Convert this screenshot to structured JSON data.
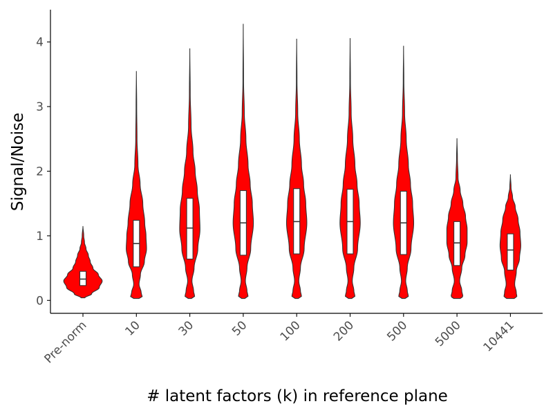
{
  "chart_data": {
    "type": "violin",
    "xlabel": "# latent factors (k) in reference plane",
    "ylabel": "Signal/Noise",
    "ylim": [
      -0.2,
      4.5
    ],
    "yticks": [
      0,
      1,
      2,
      3,
      4
    ],
    "fill_color": "#ff0000",
    "grid": false,
    "categories": [
      "Pre-norm",
      "10",
      "30",
      "50",
      "100",
      "200",
      "500",
      "5000",
      "10441"
    ],
    "series": [
      {
        "min": 0.04,
        "q1": 0.23,
        "median": 0.33,
        "q3": 0.45,
        "max": 1.15,
        "max_half_width": 0.36,
        "profile": [
          [
            0.04,
            0.1
          ],
          [
            0.1,
            0.45
          ],
          [
            0.2,
            0.85
          ],
          [
            0.3,
            1.0
          ],
          [
            0.4,
            0.8
          ],
          [
            0.5,
            0.52
          ],
          [
            0.6,
            0.38
          ],
          [
            0.7,
            0.28
          ],
          [
            0.8,
            0.16
          ],
          [
            0.9,
            0.08
          ],
          [
            1.0,
            0.04
          ],
          [
            1.15,
            0.0
          ]
        ]
      },
      {
        "min": 0.03,
        "q1": 0.52,
        "median": 0.88,
        "q3": 1.24,
        "max": 3.55,
        "max_half_width": 0.2,
        "profile": [
          [
            0.03,
            0.25
          ],
          [
            0.05,
            0.55
          ],
          [
            0.12,
            0.45
          ],
          [
            0.25,
            0.25
          ],
          [
            0.4,
            0.38
          ],
          [
            0.6,
            0.75
          ],
          [
            0.8,
            0.95
          ],
          [
            1.0,
            0.9
          ],
          [
            1.2,
            0.78
          ],
          [
            1.5,
            0.6
          ],
          [
            1.8,
            0.35
          ],
          [
            2.1,
            0.15
          ],
          [
            2.5,
            0.06
          ],
          [
            3.0,
            0.03
          ],
          [
            3.55,
            0.0
          ]
        ]
      },
      {
        "min": 0.03,
        "q1": 0.64,
        "median": 1.12,
        "q3": 1.58,
        "max": 3.9,
        "max_half_width": 0.2,
        "profile": [
          [
            0.03,
            0.15
          ],
          [
            0.06,
            0.45
          ],
          [
            0.15,
            0.35
          ],
          [
            0.3,
            0.2
          ],
          [
            0.5,
            0.4
          ],
          [
            0.8,
            0.75
          ],
          [
            1.1,
            0.95
          ],
          [
            1.4,
            0.9
          ],
          [
            1.7,
            0.7
          ],
          [
            2.0,
            0.5
          ],
          [
            2.3,
            0.3
          ],
          [
            2.7,
            0.12
          ],
          [
            3.2,
            0.04
          ],
          [
            3.9,
            0.0
          ]
        ]
      },
      {
        "min": 0.03,
        "q1": 0.7,
        "median": 1.2,
        "q3": 1.7,
        "max": 4.28,
        "max_half_width": 0.2,
        "profile": [
          [
            0.03,
            0.15
          ],
          [
            0.06,
            0.45
          ],
          [
            0.15,
            0.35
          ],
          [
            0.3,
            0.2
          ],
          [
            0.5,
            0.35
          ],
          [
            0.8,
            0.7
          ],
          [
            1.2,
            0.95
          ],
          [
            1.5,
            0.85
          ],
          [
            1.8,
            0.65
          ],
          [
            2.1,
            0.45
          ],
          [
            2.5,
            0.25
          ],
          [
            2.9,
            0.1
          ],
          [
            3.4,
            0.03
          ],
          [
            4.28,
            0.0
          ]
        ]
      },
      {
        "min": 0.03,
        "q1": 0.72,
        "median": 1.22,
        "q3": 1.73,
        "max": 4.05,
        "max_half_width": 0.2,
        "profile": [
          [
            0.03,
            0.15
          ],
          [
            0.06,
            0.45
          ],
          [
            0.15,
            0.35
          ],
          [
            0.3,
            0.2
          ],
          [
            0.5,
            0.35
          ],
          [
            0.8,
            0.7
          ],
          [
            1.2,
            0.95
          ],
          [
            1.5,
            0.85
          ],
          [
            1.8,
            0.65
          ],
          [
            2.1,
            0.45
          ],
          [
            2.5,
            0.25
          ],
          [
            2.9,
            0.1
          ],
          [
            3.4,
            0.03
          ],
          [
            4.05,
            0.0
          ]
        ]
      },
      {
        "min": 0.03,
        "q1": 0.72,
        "median": 1.22,
        "q3": 1.72,
        "max": 4.06,
        "max_half_width": 0.2,
        "profile": [
          [
            0.03,
            0.15
          ],
          [
            0.06,
            0.45
          ],
          [
            0.15,
            0.35
          ],
          [
            0.3,
            0.2
          ],
          [
            0.5,
            0.35
          ],
          [
            0.8,
            0.7
          ],
          [
            1.2,
            0.95
          ],
          [
            1.5,
            0.85
          ],
          [
            1.8,
            0.65
          ],
          [
            2.1,
            0.45
          ],
          [
            2.5,
            0.25
          ],
          [
            2.9,
            0.1
          ],
          [
            3.4,
            0.03
          ],
          [
            4.06,
            0.0
          ]
        ]
      },
      {
        "min": 0.03,
        "q1": 0.71,
        "median": 1.2,
        "q3": 1.69,
        "max": 3.94,
        "max_half_width": 0.2,
        "profile": [
          [
            0.03,
            0.15
          ],
          [
            0.06,
            0.45
          ],
          [
            0.15,
            0.35
          ],
          [
            0.3,
            0.2
          ],
          [
            0.5,
            0.35
          ],
          [
            0.8,
            0.7
          ],
          [
            1.2,
            0.95
          ],
          [
            1.5,
            0.85
          ],
          [
            1.8,
            0.65
          ],
          [
            2.1,
            0.45
          ],
          [
            2.5,
            0.25
          ],
          [
            2.9,
            0.1
          ],
          [
            3.4,
            0.03
          ],
          [
            3.94,
            0.0
          ]
        ]
      },
      {
        "min": 0.03,
        "q1": 0.54,
        "median": 0.89,
        "q3": 1.22,
        "max": 2.51,
        "max_half_width": 0.2,
        "profile": [
          [
            0.03,
            0.3
          ],
          [
            0.06,
            0.55
          ],
          [
            0.15,
            0.45
          ],
          [
            0.3,
            0.25
          ],
          [
            0.5,
            0.45
          ],
          [
            0.7,
            0.75
          ],
          [
            0.9,
            0.95
          ],
          [
            1.1,
            0.95
          ],
          [
            1.3,
            0.8
          ],
          [
            1.5,
            0.55
          ],
          [
            1.7,
            0.3
          ],
          [
            1.9,
            0.1
          ],
          [
            2.2,
            0.04
          ],
          [
            2.51,
            0.0
          ]
        ]
      },
      {
        "min": 0.03,
        "q1": 0.47,
        "median": 0.78,
        "q3": 1.03,
        "max": 1.95,
        "max_half_width": 0.2,
        "profile": [
          [
            0.03,
            0.35
          ],
          [
            0.06,
            0.6
          ],
          [
            0.12,
            0.55
          ],
          [
            0.25,
            0.4
          ],
          [
            0.45,
            0.55
          ],
          [
            0.65,
            0.85
          ],
          [
            0.85,
            0.97
          ],
          [
            1.05,
            0.9
          ],
          [
            1.25,
            0.72
          ],
          [
            1.45,
            0.45
          ],
          [
            1.6,
            0.2
          ],
          [
            1.75,
            0.06
          ],
          [
            1.95,
            0.0
          ]
        ]
      }
    ]
  }
}
